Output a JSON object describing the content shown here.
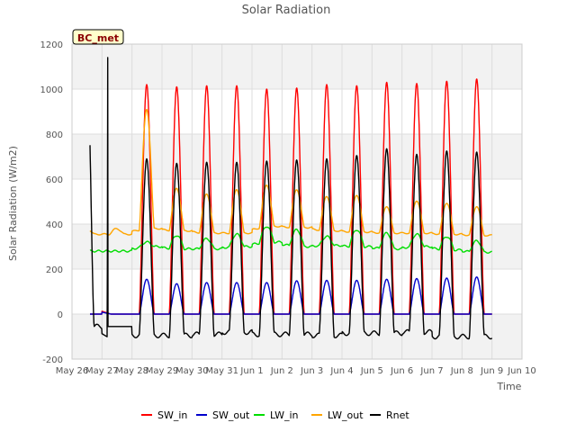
{
  "chart_data": {
    "type": "line",
    "title": "Solar Radiation",
    "xlabel": "Time",
    "ylabel": "Solar Radiation (W/m2)",
    "ylim": [
      -200,
      1200
    ],
    "yticks": [
      -200,
      0,
      200,
      400,
      600,
      800,
      1000,
      1200
    ],
    "xlim": [
      0,
      15
    ],
    "xtick_labels": [
      "May 26",
      "May 27",
      "May 28",
      "May 29",
      "May 30",
      "May 31",
      "Jun 1",
      "Jun 2",
      "Jun 3",
      "Jun 4",
      "Jun 5",
      "Jun 6",
      "Jun 7",
      "Jun 8",
      "Jun 9",
      "Jun 10"
    ],
    "grid": true,
    "legend_position": "bottom-center",
    "annotation": "BC_met",
    "days": [
      "May 27",
      "May 28",
      "May 29",
      "May 30",
      "May 31",
      "Jun 1",
      "Jun 2",
      "Jun 3",
      "Jun 4",
      "Jun 5",
      "Jun 6",
      "Jun 7",
      "Jun 8",
      "Jun 9"
    ],
    "series": [
      {
        "name": "SW_in",
        "color": "#ff0000",
        "daily_peak": [
          0,
          1020,
          1010,
          1015,
          1015,
          1000,
          1005,
          1020,
          1015,
          1030,
          1025,
          1035,
          1045,
          1045
        ],
        "night": 0
      },
      {
        "name": "SW_out",
        "color": "#0000cc",
        "daily_peak": [
          0,
          155,
          135,
          140,
          140,
          140,
          148,
          150,
          150,
          155,
          158,
          160,
          165,
          160
        ],
        "night": 0
      },
      {
        "name": "LW_in",
        "color": "#00dd00",
        "daily_peak": [
          280,
          320,
          350,
          335,
          355,
          390,
          375,
          345,
          375,
          360,
          355,
          345,
          325,
          310
        ],
        "night": [
          280,
          300,
          290,
          290,
          300,
          320,
          300,
          305,
          300,
          290,
          300,
          285,
          275,
          285
        ]
      },
      {
        "name": "LW_out",
        "color": "#ffa500",
        "daily_peak": [
          380,
          910,
          560,
          535,
          555,
          575,
          555,
          525,
          530,
          480,
          505,
          495,
          480,
          465
        ],
        "night": [
          355,
          380,
          370,
          360,
          360,
          390,
          385,
          370,
          365,
          360,
          360,
          355,
          350,
          365
        ]
      },
      {
        "name": "Rnet",
        "color": "#000000",
        "daily_peak": [
          1140,
          690,
          670,
          675,
          675,
          680,
          685,
          690,
          705,
          735,
          710,
          725,
          720,
          725
        ],
        "night": [
          -55,
          -95,
          -95,
          -90,
          -80,
          -90,
          -90,
          -95,
          -85,
          -85,
          -80,
          -100,
          -100,
          -90
        ]
      }
    ]
  }
}
